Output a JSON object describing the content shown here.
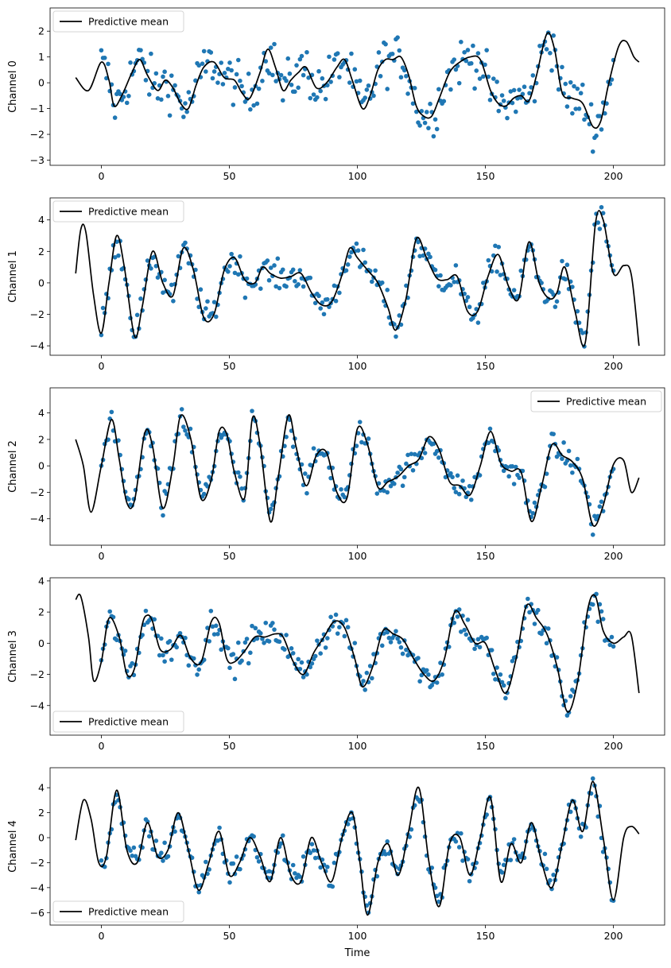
{
  "figure": {
    "xlabel": "Time",
    "mean_color": "#000000",
    "obs_color": "#1f77b4"
  },
  "chart_data": [
    {
      "type": "line",
      "ylabel": "Channel 0",
      "legend": {
        "entries": [
          "Predictive mean"
        ],
        "placement": "upper-left"
      },
      "xlim": [
        -20,
        220
      ],
      "ylim": [
        -3.2,
        2.9
      ],
      "xticks": [
        0,
        50,
        100,
        150,
        200
      ],
      "yticks": [
        -3,
        -2,
        -1,
        0,
        1,
        2
      ],
      "series": [
        {
          "name": "Predictive mean",
          "x": [
            -10,
            -5,
            0,
            3,
            5,
            8,
            12,
            15,
            18,
            22,
            25,
            28,
            31,
            34,
            37,
            40,
            44,
            48,
            52,
            55,
            58,
            62,
            65,
            68,
            71,
            74,
            77,
            80,
            84,
            88,
            92,
            95,
            98,
            102,
            105,
            108,
            111,
            114,
            117,
            120,
            123,
            126,
            129,
            132,
            136,
            140,
            144,
            148,
            152,
            155,
            158,
            161,
            164,
            167,
            170,
            174,
            177,
            180,
            184,
            188,
            192,
            195,
            198,
            202,
            205,
            208,
            210
          ],
          "y": [
            0.2,
            -0.3,
            0.8,
            0.1,
            -0.9,
            -0.5,
            0.4,
            0.9,
            0.3,
            -0.3,
            0.1,
            -0.2,
            -0.8,
            -1.0,
            -0.1,
            0.6,
            0.8,
            0.2,
            0.1,
            -0.4,
            -0.6,
            0.4,
            1.3,
            0.6,
            -0.3,
            0.1,
            0.4,
            0.6,
            -0.2,
            0.0,
            0.6,
            0.9,
            0.1,
            -1.0,
            -0.5,
            0.5,
            0.9,
            0.9,
            1.0,
            0.3,
            -0.9,
            -1.3,
            -1.3,
            -0.6,
            0.4,
            0.8,
            1.0,
            0.9,
            -0.3,
            -0.8,
            -0.9,
            -0.6,
            -0.5,
            -0.7,
            0.3,
            1.9,
            1.3,
            -0.4,
            -0.6,
            -0.8,
            -1.7,
            -1.5,
            -0.1,
            1.4,
            1.6,
            1.0,
            0.8
          ]
        },
        {
          "name": "Observations",
          "amp": 0.45,
          "x_range": [
            0,
            200
          ]
        }
      ]
    },
    {
      "type": "line",
      "ylabel": "Channel 1",
      "legend": {
        "entries": [
          "Predictive mean"
        ],
        "placement": "upper-left"
      },
      "xlim": [
        -20,
        220
      ],
      "ylim": [
        -4.6,
        5.4
      ],
      "xticks": [
        0,
        50,
        100,
        150,
        200
      ],
      "yticks": [
        -4,
        -2,
        0,
        2,
        4
      ],
      "series": [
        {
          "name": "Predictive mean",
          "x": [
            -10,
            -8,
            -6,
            -3,
            0,
            3,
            6,
            9,
            13,
            16,
            20,
            24,
            28,
            32,
            36,
            40,
            44,
            48,
            52,
            56,
            60,
            63,
            66,
            70,
            74,
            78,
            82,
            86,
            90,
            94,
            97,
            100,
            104,
            108,
            112,
            115,
            119,
            123,
            127,
            131,
            135,
            139,
            143,
            147,
            151,
            155,
            159,
            163,
            167,
            171,
            175,
            178,
            181,
            185,
            189,
            193,
            196,
            200,
            204,
            207,
            210
          ],
          "y": [
            0.6,
            3.4,
            3.2,
            -0.8,
            -3.2,
            0.0,
            3.0,
            1.0,
            -3.4,
            -1.5,
            2.0,
            0.0,
            -0.8,
            2.2,
            0.8,
            -2.2,
            -2.0,
            0.8,
            1.6,
            0.2,
            0.0,
            1.0,
            0.6,
            0.3,
            0.4,
            0.6,
            -0.6,
            -1.4,
            -1.2,
            0.5,
            2.2,
            1.6,
            0.8,
            0.0,
            -1.6,
            -3.0,
            -1.0,
            2.8,
            1.6,
            0.3,
            0.2,
            0.4,
            -1.8,
            -1.8,
            0.4,
            1.8,
            -0.2,
            -1.0,
            2.6,
            0.0,
            -1.0,
            -0.6,
            1.0,
            -1.8,
            -3.8,
            3.8,
            4.0,
            0.6,
            1.1,
            0.5,
            -4.0
          ]
        },
        {
          "name": "Observations",
          "amp": 0.45,
          "x_range": [
            0,
            200
          ]
        }
      ]
    },
    {
      "type": "line",
      "ylabel": "Channel 2",
      "legend": {
        "entries": [
          "Predictive mean"
        ],
        "placement": "upper-right"
      },
      "xlim": [
        -20,
        220
      ],
      "ylim": [
        -6.0,
        5.9
      ],
      "xticks": [
        0,
        50,
        100,
        150,
        200
      ],
      "yticks": [
        -4,
        -2,
        0,
        2,
        4
      ],
      "series": [
        {
          "name": "Predictive mean",
          "x": [
            -10,
            -7,
            -4,
            0,
            4,
            7,
            10,
            13,
            17,
            20,
            24,
            28,
            31,
            35,
            39,
            43,
            46,
            49,
            52,
            56,
            59,
            62,
            66,
            69,
            73,
            76,
            80,
            84,
            88,
            92,
            96,
            100,
            104,
            108,
            112,
            116,
            120,
            124,
            128,
            132,
            136,
            140,
            144,
            148,
            152,
            156,
            160,
            164,
            168,
            172,
            176,
            180,
            184,
            188,
            192,
            196,
            200,
            204,
            207,
            210
          ],
          "y": [
            2.0,
            0.0,
            -3.5,
            0.0,
            3.5,
            0.5,
            -2.8,
            -2.6,
            2.5,
            1.5,
            -3.2,
            0.0,
            3.8,
            2.0,
            -2.5,
            -1.0,
            2.6,
            2.4,
            -0.5,
            -2.4,
            3.6,
            1.6,
            -4.2,
            -1.0,
            3.8,
            1.5,
            -1.5,
            0.8,
            1.0,
            -2.0,
            -2.4,
            2.8,
            1.6,
            -1.6,
            -1.2,
            -0.8,
            0.0,
            0.5,
            2.2,
            1.2,
            -1.2,
            -1.5,
            -2.2,
            0.0,
            2.6,
            0.2,
            -0.4,
            -0.5,
            -4.2,
            -1.5,
            1.6,
            0.8,
            0.3,
            -1.0,
            -4.5,
            -3.0,
            0.1,
            0.4,
            -2.0,
            -0.9
          ]
        },
        {
          "name": "Observations",
          "amp": 0.45,
          "x_range": [
            0,
            200
          ]
        }
      ]
    },
    {
      "type": "line",
      "ylabel": "Channel 3",
      "legend": {
        "entries": [
          "Predictive mean"
        ],
        "placement": "lower-left"
      },
      "xlim": [
        -20,
        220
      ],
      "ylim": [
        -5.9,
        4.2
      ],
      "xticks": [
        0,
        50,
        100,
        150,
        200
      ],
      "yticks": [
        -4,
        -2,
        0,
        2,
        4
      ],
      "series": [
        {
          "name": "Predictive mean",
          "x": [
            -10,
            -8,
            -5,
            -3,
            0,
            3,
            7,
            10,
            13,
            16,
            18,
            20,
            23,
            27,
            31,
            35,
            39,
            43,
            46,
            49,
            52,
            56,
            60,
            64,
            68,
            71,
            75,
            79,
            83,
            87,
            91,
            95,
            99,
            102,
            106,
            110,
            114,
            118,
            122,
            126,
            130,
            134,
            138,
            142,
            146,
            150,
            154,
            158,
            162,
            166,
            170,
            174,
            178,
            182,
            186,
            190,
            193,
            196,
            200,
            204,
            207,
            210
          ],
          "y": [
            2.8,
            3.0,
            0.4,
            -2.4,
            -1.2,
            1.6,
            0.4,
            -2.0,
            -1.6,
            1.2,
            1.8,
            1.4,
            -0.4,
            -0.4,
            0.5,
            -1.0,
            -1.2,
            1.4,
            1.3,
            -1.0,
            -1.2,
            -0.5,
            0.4,
            0.4,
            0.6,
            0.4,
            -1.2,
            -2.0,
            -0.6,
            0.4,
            1.4,
            1.0,
            -1.0,
            -2.8,
            -1.5,
            0.8,
            0.6,
            0.2,
            -1.0,
            -2.0,
            -2.4,
            -1.0,
            2.0,
            1.2,
            0.0,
            0.0,
            -1.8,
            -3.2,
            -1.0,
            2.4,
            1.6,
            0.6,
            -1.5,
            -4.4,
            -2.5,
            2.2,
            3.0,
            0.8,
            0.0,
            0.4,
            0.5,
            -3.2
          ]
        },
        {
          "name": "Observations",
          "amp": 0.45,
          "x_range": [
            0,
            200
          ]
        }
      ]
    },
    {
      "type": "line",
      "ylabel": "Channel 4",
      "legend": {
        "entries": [
          "Predictive mean"
        ],
        "placement": "lower-left"
      },
      "xlim": [
        -20,
        220
      ],
      "ylim": [
        -7.0,
        5.6
      ],
      "xticks": [
        0,
        50,
        100,
        150,
        200
      ],
      "yticks": [
        -6,
        -4,
        -2,
        0,
        2,
        4
      ],
      "series": [
        {
          "name": "Predictive mean",
          "x": [
            -10,
            -7,
            -4,
            -1,
            2,
            6,
            10,
            14,
            18,
            22,
            26,
            30,
            34,
            38,
            42,
            46,
            50,
            54,
            58,
            62,
            66,
            70,
            74,
            78,
            82,
            86,
            90,
            94,
            98,
            101,
            104,
            108,
            112,
            116,
            120,
            124,
            128,
            132,
            136,
            140,
            144,
            148,
            152,
            156,
            160,
            164,
            168,
            172,
            176,
            180,
            184,
            188,
            192,
            196,
            200,
            204,
            207,
            210
          ],
          "y": [
            -0.2,
            3.0,
            1.5,
            -2.0,
            -1.5,
            3.8,
            -1.0,
            -2.0,
            1.2,
            -1.5,
            -1.0,
            2.0,
            -1.0,
            -4.2,
            -2.0,
            0.5,
            -3.0,
            -2.0,
            0.0,
            -1.5,
            -3.5,
            0.0,
            -3.0,
            -3.5,
            0.0,
            -2.0,
            -3.5,
            0.0,
            2.0,
            -2.0,
            -6.2,
            -2.0,
            -0.5,
            -3.0,
            0.5,
            4.0,
            -2.0,
            -5.5,
            -0.5,
            0.0,
            -3.0,
            0.0,
            3.2,
            -3.5,
            -0.5,
            -2.0,
            1.2,
            -2.0,
            -4.0,
            -0.5,
            3.0,
            0.5,
            4.5,
            0.0,
            -5.0,
            0.0,
            0.9,
            0.3
          ]
        },
        {
          "name": "Observations",
          "amp": 0.45,
          "x_range": [
            0,
            200
          ]
        }
      ]
    }
  ]
}
